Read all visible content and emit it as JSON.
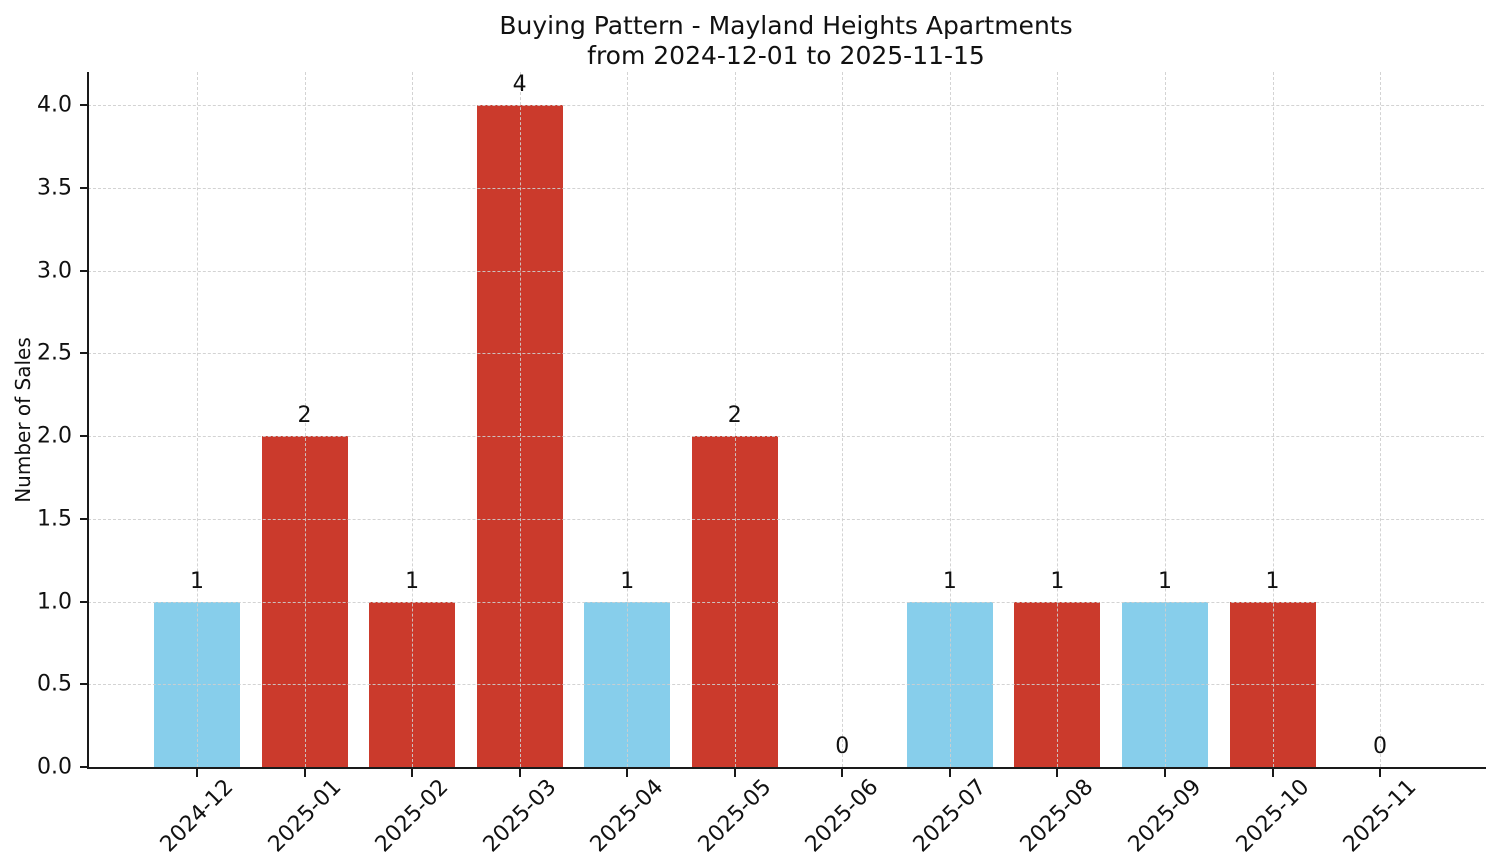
{
  "figure": {
    "title_line1": "Buying Pattern - Mayland Heights Apartments",
    "title_line2": "from 2024-12-01 to 2025-11-15"
  },
  "chart_data": {
    "type": "bar",
    "title": "Buying Pattern - Mayland Heights Apartments\nfrom 2024-12-01 to 2025-11-15",
    "xlabel": "",
    "ylabel": "Number of Sales",
    "categories": [
      "2024-12",
      "2025-01",
      "2025-02",
      "2025-03",
      "2025-04",
      "2025-05",
      "2025-06",
      "2025-07",
      "2025-08",
      "2025-09",
      "2025-10",
      "2025-11"
    ],
    "values": [
      1,
      2,
      1,
      4,
      1,
      2,
      0,
      1,
      1,
      1,
      1,
      0
    ],
    "bar_labels": [
      "1",
      "2",
      "1",
      "4",
      "1",
      "2",
      "0",
      "1",
      "1",
      "1",
      "1",
      "0"
    ],
    "bar_colors": [
      "#87CEEB",
      "#CB3A2C",
      "#CB3A2C",
      "#CB3A2C",
      "#87CEEB",
      "#CB3A2C",
      null,
      "#87CEEB",
      "#CB3A2C",
      "#87CEEB",
      "#CB3A2C",
      null
    ],
    "ylim": [
      0,
      4.2
    ],
    "yticks": [
      0,
      0.5,
      1,
      1.5,
      2,
      2.5,
      3,
      3.5,
      4
    ],
    "ytick_labels": [
      "0.0",
      "0.5",
      "1.0",
      "1.5",
      "2.0",
      "2.5",
      "3.0",
      "3.5",
      "4.0"
    ],
    "grid": true,
    "grid_style": "dashed",
    "grid_over_bars": true,
    "legend": null
  },
  "colors": {
    "bar_blue": "#87CEEB",
    "bar_red": "#CB3A2C",
    "axis": "#1a1a1a",
    "grid": "#cecece",
    "background": "#ffffff",
    "text": "#111111"
  }
}
